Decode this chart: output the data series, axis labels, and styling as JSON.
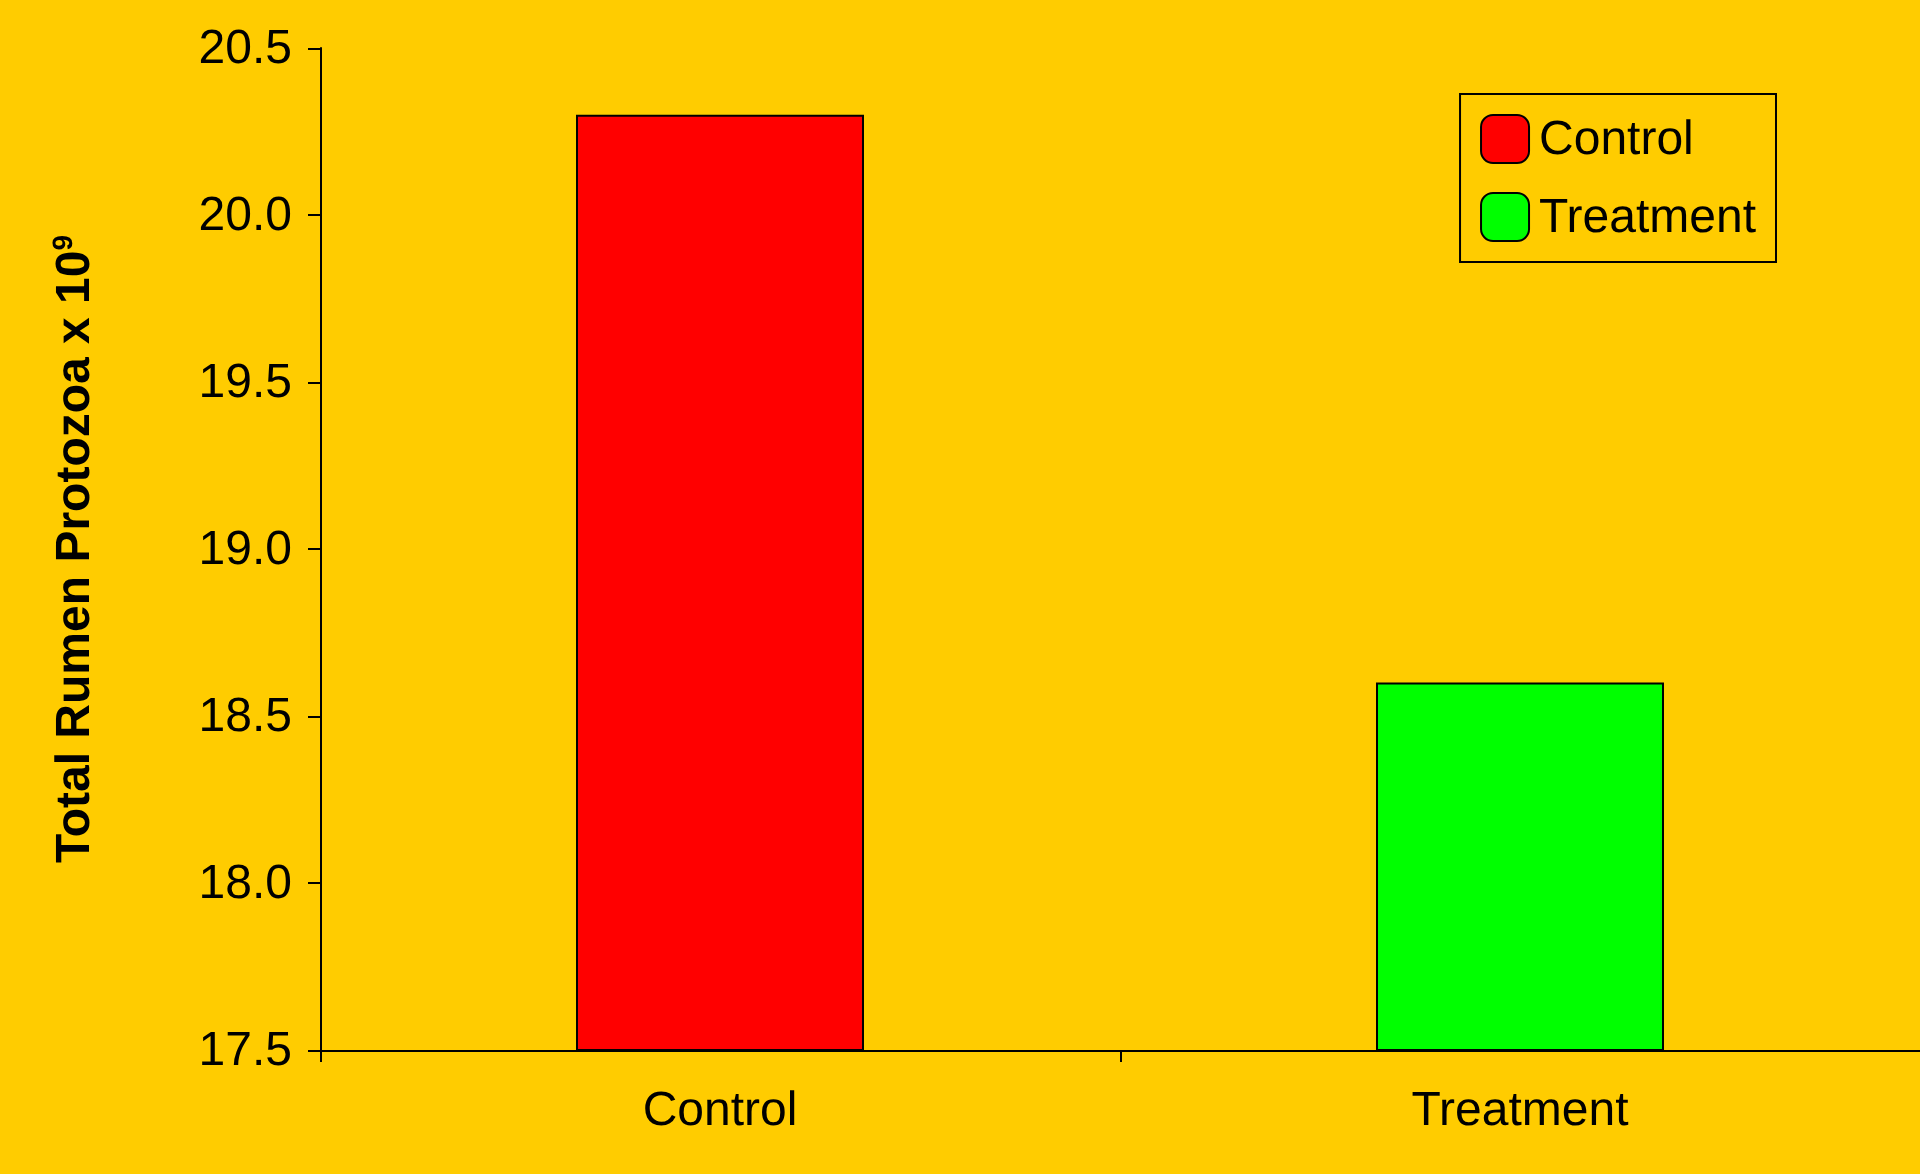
{
  "chart_data": {
    "type": "bar",
    "ylabel": "Total Rumen Protozoa x 10$^{9}$",
    "categories": [
      "Control",
      "Treatment"
    ],
    "series": [
      {
        "name": "Control",
        "color": "#ff0000",
        "values": [
          20.3,
          null
        ]
      },
      {
        "name": "Treatment",
        "color": "#00ff00",
        "values": [
          null,
          18.6
        ]
      }
    ],
    "ylim": [
      17.5,
      20.5
    ],
    "yticks": [
      {
        "value": 17.5,
        "label": "17.5"
      },
      {
        "value": 18,
        "label": "18.0"
      },
      {
        "value": 18.5,
        "label": "18.5"
      },
      {
        "value": 19,
        "label": "19.0"
      },
      {
        "value": 19.5,
        "label": "19.5"
      },
      {
        "value": 20,
        "label": "20.0"
      },
      {
        "value": 20.5,
        "label": "20.5"
      }
    ],
    "grid": false,
    "legend": "top right"
  }
}
